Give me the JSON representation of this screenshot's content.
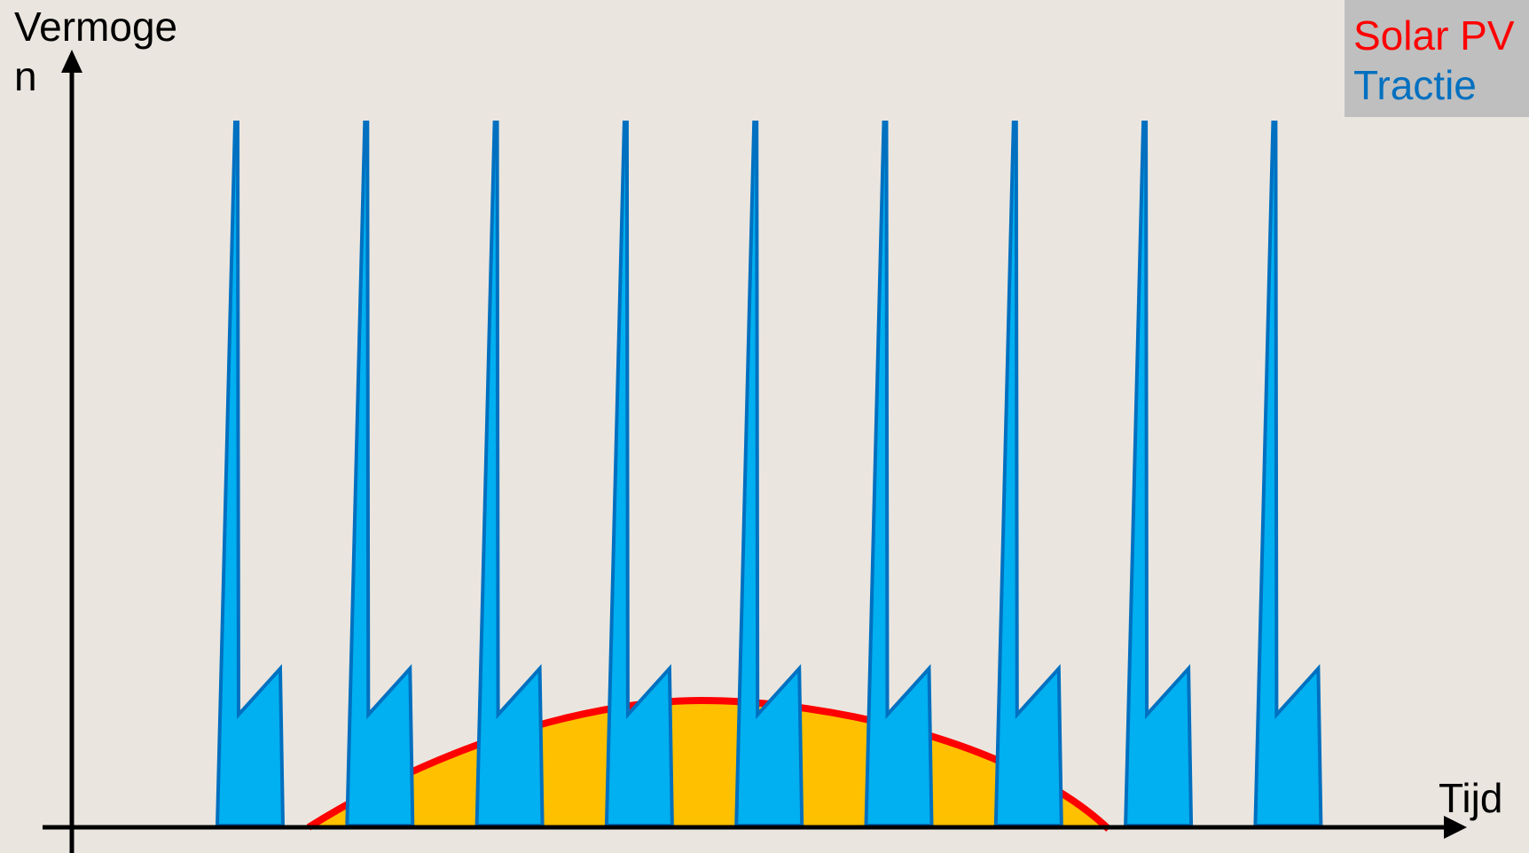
{
  "diagram": {
    "y_axis_label": "Vermogen",
    "x_axis_label": "Tijd",
    "legend": [
      {
        "label": "Solar PV",
        "color": "#FF0000"
      },
      {
        "label": "Tractie",
        "color": "#0070C0"
      }
    ],
    "colors": {
      "background": "#EAE6DF",
      "solar_fill": "#FFC000",
      "solar_line": "#FF0000",
      "traction_fill": "#00B0F0",
      "traction_line": "#0070C0",
      "axis": "#000000",
      "legend_box": "#BFBFBF"
    },
    "traction_pulse_count": 9
  }
}
